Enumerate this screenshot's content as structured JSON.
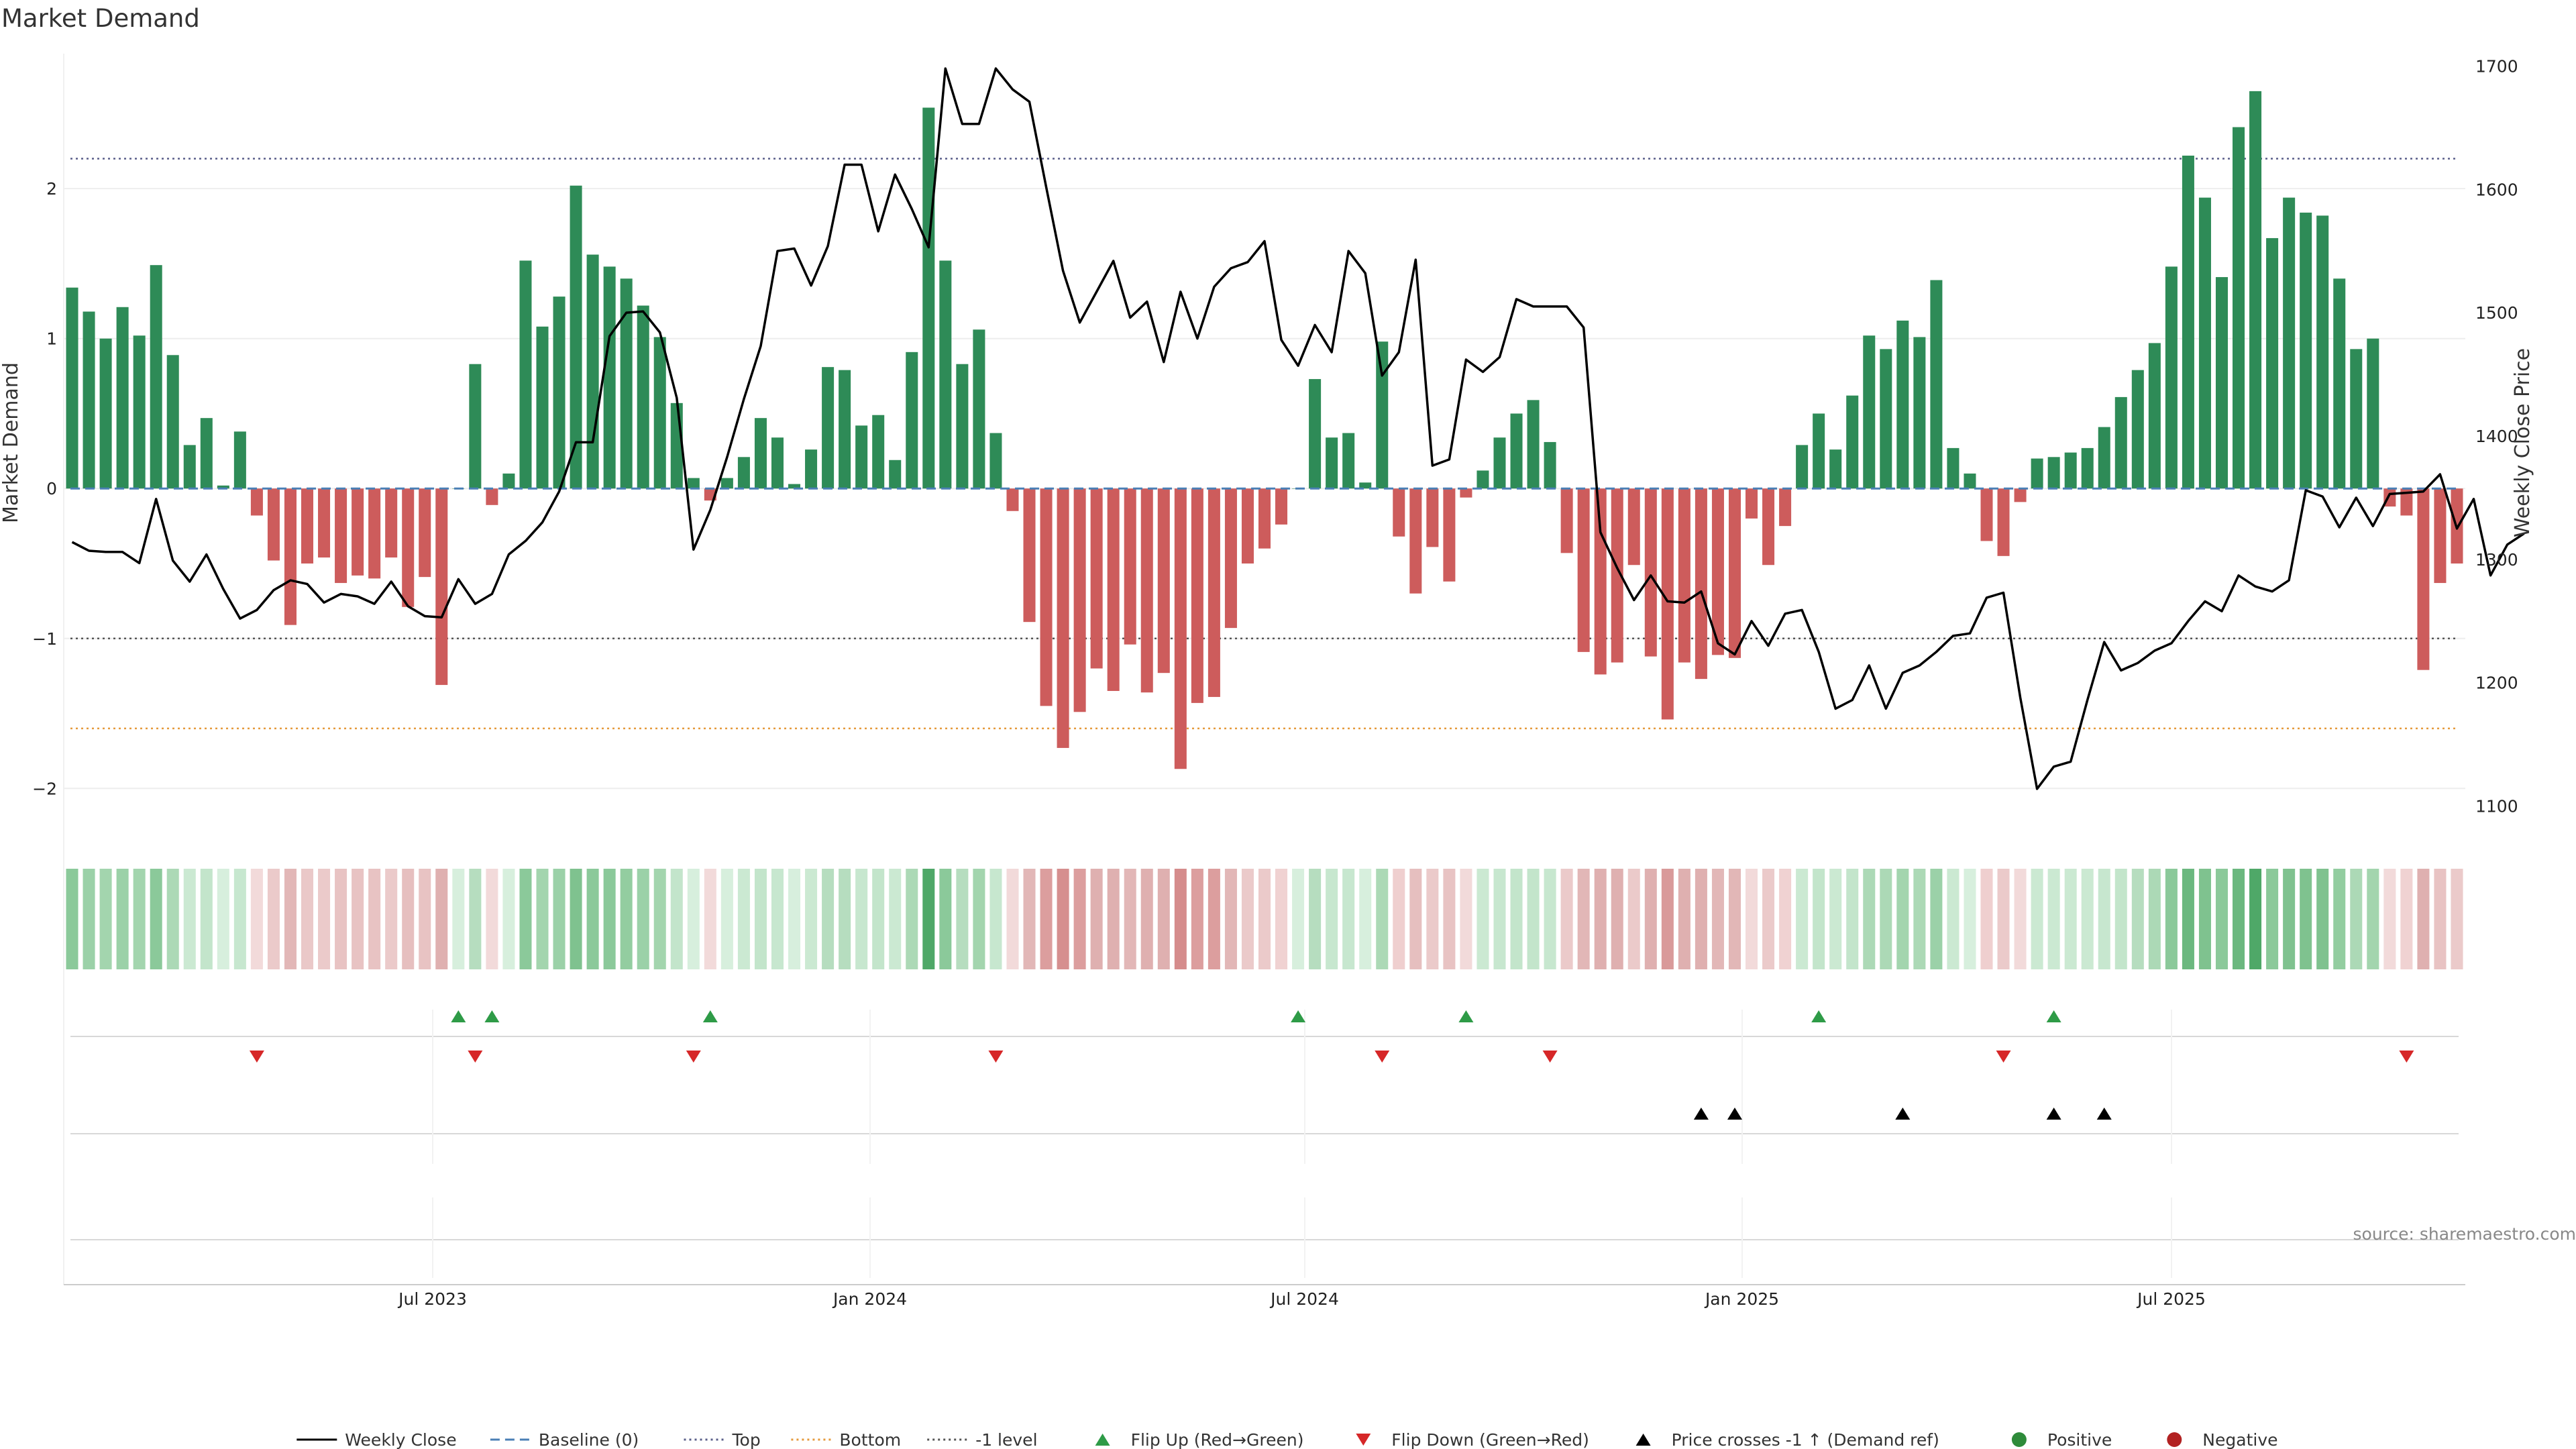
{
  "chart_data": {
    "type": "bar",
    "title": "Market Demand",
    "ylabel": "Market Demand",
    "y2label": "Weekly Close Price",
    "ylim": [
      -2.2,
      2.9
    ],
    "y2lim": [
      1090,
      1710
    ],
    "yticks": [
      "−2",
      "−1",
      "0",
      "1",
      "2"
    ],
    "y2ticks": [
      "1100",
      "1200",
      "1300",
      "1400",
      "1500",
      "1600",
      "1700"
    ],
    "xticks": [
      "Jul 2023",
      "Jan 2024",
      "Jul 2024",
      "Jan 2025",
      "Jul 2025"
    ],
    "reference_lines": {
      "top": 2.2,
      "bottom": -1.6,
      "minus_one": -1.0,
      "baseline": 0
    },
    "series": [
      {
        "name": "Market Demand",
        "values": [
          1.34,
          1.18,
          1.0,
          1.21,
          1.02,
          1.49,
          0.89,
          0.29,
          0.47,
          0.02,
          0.38,
          -0.18,
          -0.48,
          -0.91,
          -0.5,
          -0.46,
          -0.63,
          -0.58,
          -0.6,
          -0.46,
          -0.79,
          -0.59,
          -1.31,
          0.0,
          0.83,
          -0.11,
          0.1,
          1.52,
          1.08,
          1.28,
          2.02,
          1.56,
          1.48,
          1.4,
          1.22,
          1.01,
          0.57,
          0.07,
          -0.08,
          0.07,
          0.21,
          0.47,
          0.34,
          0.03,
          0.26,
          0.81,
          0.79,
          0.42,
          0.49,
          0.19,
          0.91,
          2.54,
          1.52,
          0.83,
          1.06,
          0.37,
          -0.15,
          -0.89,
          -1.45,
          -1.73,
          -1.49,
          -1.2,
          -1.35,
          -1.04,
          -1.36,
          -1.23,
          -1.87,
          -1.43,
          -1.39,
          -0.93,
          -0.5,
          -0.4,
          -0.24,
          0.0,
          0.73,
          0.34,
          0.37,
          0.04,
          0.98,
          -0.32,
          -0.7,
          -0.39,
          -0.62,
          -0.06,
          0.12,
          0.34,
          0.5,
          0.59,
          0.31,
          -0.43,
          -1.09,
          -1.24,
          -1.16,
          -0.51,
          -1.12,
          -1.54,
          -1.16,
          -1.27,
          -1.11,
          -1.13,
          -0.2,
          -0.51,
          -0.25,
          0.29,
          0.5,
          0.26,
          0.62,
          1.02,
          0.93,
          1.12,
          1.01,
          1.39,
          0.27,
          0.1,
          -0.35,
          -0.45,
          -0.09,
          0.2,
          0.21,
          0.24,
          0.27,
          0.41,
          0.61,
          0.79,
          0.97,
          1.48,
          2.22,
          1.94,
          1.41,
          2.41,
          2.65,
          1.67,
          1.94,
          1.84,
          1.82,
          1.4,
          0.93,
          1.0,
          -0.12,
          -0.18,
          -1.21,
          -0.63,
          -0.5
        ]
      },
      {
        "name": "Weekly Close",
        "values": [
          1314,
          1307,
          1306,
          1306,
          1297,
          1349,
          1299,
          1282,
          1304,
          1276,
          1252,
          1259,
          1275,
          1283,
          1280,
          1265,
          1272,
          1270,
          1264,
          1282,
          1262,
          1254,
          1253,
          1284,
          1264,
          1272,
          1304,
          1315,
          1330,
          1355,
          1395,
          1395,
          1481,
          1500,
          1501,
          1484,
          1431,
          1308,
          1340,
          1383,
          1430,
          1473,
          1550,
          1552,
          1522,
          1554,
          1620,
          1620,
          1566,
          1612,
          1584,
          1553,
          1698,
          1653,
          1653,
          1698,
          1681,
          1671,
          1602,
          1534,
          1492,
          1517,
          1542,
          1496,
          1509,
          1460,
          1517,
          1479,
          1521,
          1536,
          1541,
          1558,
          1478,
          1457,
          1490,
          1468,
          1550,
          1532,
          1449,
          1468,
          1543,
          1376,
          1381,
          1462,
          1452,
          1464,
          1511,
          1505,
          1505,
          1505,
          1488,
          1322,
          1293,
          1267,
          1287,
          1266,
          1265,
          1274,
          1232,
          1223,
          1250,
          1230,
          1256,
          1259,
          1225,
          1179,
          1186,
          1214,
          1179,
          1208,
          1214,
          1225,
          1238,
          1240,
          1269,
          1273,
          1188,
          1114,
          1132,
          1136,
          1186,
          1233,
          1210,
          1216,
          1226,
          1232,
          1250,
          1266,
          1258,
          1287,
          1278,
          1274,
          1283,
          1356,
          1351,
          1326,
          1350,
          1327,
          1353,
          1354,
          1355,
          1369,
          1325,
          1349,
          1287,
          1312,
          1321
        ]
      }
    ],
    "strip_colors": [
      "#8bc99a",
      "#9bd1a8",
      "#a3d5ae",
      "#9bd1a8",
      "#a3d5ae",
      "#8bc99a",
      "#acd9b6",
      "#cbe9d2",
      "#c3e5cb",
      "#d7efdd",
      "#c7e7cf",
      "#f2dada",
      "#ebcaca",
      "#e2b7b7",
      "#eac8c8",
      "#ebcaca",
      "#e8c3c3",
      "#e8c3c3",
      "#e8c3c3",
      "#ebcaca",
      "#e6bfbf",
      "#e8c3c3",
      "#dfb0b0",
      "#d7efdd",
      "#b6ddbf",
      "#f2dada",
      "#d7efdd",
      "#8bc99a",
      "#a3d5ae",
      "#9bd1a8",
      "#7fc28f",
      "#8bc99a",
      "#8bc99a",
      "#93cda0",
      "#9bd1a8",
      "#a3d5ae",
      "#c3e5cb",
      "#d7efdd",
      "#f2dada",
      "#d7efdd",
      "#cbe9d2",
      "#c3e5cb",
      "#c7e7cf",
      "#d7efdd",
      "#cbe9d2",
      "#b6ddbf",
      "#b6ddbf",
      "#c7e7cf",
      "#c3e5cb",
      "#cbe9d2",
      "#acd9b6",
      "#4fa868",
      "#8bc99a",
      "#b6ddbf",
      "#a3d5ae",
      "#c7e7cf",
      "#f2dada",
      "#e2b7b7",
      "#dc9e9e",
      "#d68f8f",
      "#dc9e9e",
      "#dfb0b0",
      "#dfb0b0",
      "#e2b7b7",
      "#dfb0b0",
      "#dfb0b0",
      "#d58c8c",
      "#dc9e9e",
      "#dc9e9e",
      "#e2b7b7",
      "#ebcaca",
      "#ebcaca",
      "#f0d2d2",
      "#d7efdd",
      "#b6ddbf",
      "#c7e7cf",
      "#c7e7cf",
      "#d7efdd",
      "#acd9b6",
      "#efcfcf",
      "#e6bfbf",
      "#ebcaca",
      "#e8c3c3",
      "#f2dada",
      "#cbe9d2",
      "#c7e7cf",
      "#c3e5cb",
      "#c3e5cb",
      "#c7e7cf",
      "#ebcaca",
      "#e2b7b7",
      "#dfb0b0",
      "#dfb0b0",
      "#ebcaca",
      "#dfb0b0",
      "#d99a9a",
      "#dfb0b0",
      "#dfb0b0",
      "#e2b7b7",
      "#e2b7b7",
      "#f2dada",
      "#ebcaca",
      "#f0d2d2",
      "#cbe9d2",
      "#c3e5cb",
      "#cbe9d2",
      "#c3e5cb",
      "#acd9b6",
      "#acd9b6",
      "#a3d5ae",
      "#acd9b6",
      "#9bd1a8",
      "#cbe9d2",
      "#d7efdd",
      "#efcfcf",
      "#ebcaca",
      "#f2dada",
      "#cbe9d2",
      "#cbe9d2",
      "#cbe9d2",
      "#cbe9d2",
      "#c7e7cf",
      "#c3e5cb",
      "#b6ddbf",
      "#acd9b6",
      "#8bc99a",
      "#6bb87f",
      "#7fc28f",
      "#8bc99a",
      "#6bb87f",
      "#4fa868",
      "#8bc99a",
      "#7fc28f",
      "#7fc28f",
      "#7fc28f",
      "#93cda0",
      "#acd9b6",
      "#a3d5ae",
      "#f2dada",
      "#f0d2d2",
      "#dfb0b0",
      "#e8c3c3",
      "#ebcaca"
    ],
    "flip_up_indices": [
      23,
      25,
      38,
      73,
      83,
      104,
      118
    ],
    "flip_down_indices": [
      11,
      24,
      37,
      55,
      78,
      88,
      115,
      139
    ],
    "price_cross_indices": [
      97,
      99,
      109,
      118,
      121
    ],
    "legend": [
      {
        "label": "Weekly Close",
        "kind": "line-solid",
        "color": "#000000"
      },
      {
        "label": "Baseline (0)",
        "kind": "line-dashed",
        "color": "#4a7fb5"
      },
      {
        "label": "Top",
        "kind": "line-dotted",
        "color": "#5a5f8a"
      },
      {
        "label": "Bottom",
        "kind": "line-dotted",
        "color": "#e59a3c"
      },
      {
        "label": "-1 level",
        "kind": "line-dotted",
        "color": "#555555"
      },
      {
        "label": "Flip Up (Red→Green)",
        "kind": "triangle-up",
        "color": "#2e9b47"
      },
      {
        "label": "Flip Down (Green→Red)",
        "kind": "triangle-down",
        "color": "#d62728"
      },
      {
        "label": "Price crosses -1 ↑ (Demand ref)",
        "kind": "triangle-up",
        "color": "#000000"
      },
      {
        "label": "Positive",
        "kind": "circle",
        "color": "#2e8b3a"
      },
      {
        "label": "Negative",
        "kind": "circle",
        "color": "#b22222"
      }
    ],
    "source": "source: sharemaestro.com",
    "colors": {
      "positive": "#2e8b57",
      "negative": "#cd5c5c",
      "flip_up": "#2e9b47",
      "flip_down": "#d62728"
    }
  }
}
